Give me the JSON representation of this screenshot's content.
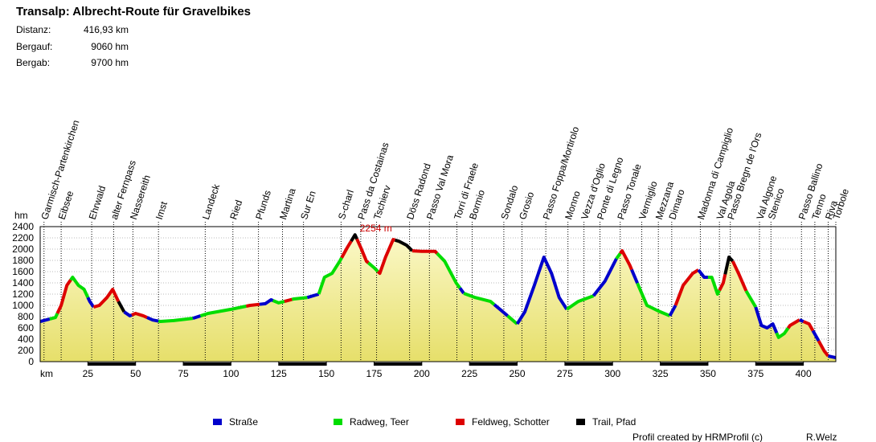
{
  "title": "Transalp: Albrecht-Route für Gravelbikes",
  "stats": [
    {
      "label": "Distanz:",
      "value": "416,93 km"
    },
    {
      "label": "Bergauf:",
      "value": "9060 hm"
    },
    {
      "label": "Bergab:",
      "value": "9700 hm"
    }
  ],
  "chart_data": {
    "type": "area",
    "xlabel": "km",
    "ylabel": "hm",
    "xlim": [
      0,
      417
    ],
    "ylim": [
      0,
      2400
    ],
    "xticks": [
      25,
      50,
      75,
      100,
      125,
      150,
      175,
      200,
      225,
      250,
      275,
      300,
      325,
      350,
      375,
      400
    ],
    "yticks": [
      0,
      200,
      400,
      600,
      800,
      1000,
      1200,
      1400,
      1600,
      1800,
      2000,
      2200,
      2400
    ],
    "x": [
      0,
      8,
      11,
      14,
      17,
      20,
      23,
      26,
      28,
      31,
      35,
      38,
      41,
      44,
      47,
      50,
      54,
      59,
      63,
      70,
      80,
      88,
      100,
      110,
      118,
      121,
      125,
      133,
      140,
      146,
      149,
      153,
      157,
      161,
      165,
      168,
      171,
      175,
      178,
      181,
      185,
      188,
      192,
      195,
      200,
      207,
      212,
      218,
      222,
      228,
      236,
      241,
      246,
      250,
      254,
      259,
      264,
      268,
      272,
      276,
      282,
      290,
      296,
      302,
      305,
      309,
      314,
      318,
      324,
      330,
      333,
      337,
      342,
      345,
      348,
      352,
      355,
      358,
      361,
      363,
      366,
      370,
      375,
      378,
      381,
      384,
      387,
      390,
      393,
      398,
      403,
      407,
      411,
      413,
      416.93
    ],
    "values": [
      714,
      785,
      1000,
      1357,
      1500,
      1357,
      1285,
      1070,
      970,
      1000,
      1140,
      1285,
      1070,
      885,
      815,
      857,
      815,
      740,
      714,
      730,
      770,
      857,
      930,
      1000,
      1030,
      1100,
      1045,
      1115,
      1140,
      1200,
      1500,
      1570,
      1785,
      2030,
      2254,
      2030,
      1785,
      1670,
      1570,
      1857,
      2170,
      2140,
      2070,
      1970,
      1960,
      1960,
      1785,
      1400,
      1215,
      1140,
      1070,
      930,
      785,
      670,
      885,
      1357,
      1857,
      1570,
      1140,
      930,
      1070,
      1170,
      1430,
      1830,
      1970,
      1715,
      1315,
      1000,
      900,
      815,
      1000,
      1357,
      1570,
      1630,
      1500,
      1500,
      1200,
      1400,
      1857,
      1785,
      1570,
      1257,
      970,
      643,
      600,
      670,
      430,
      500,
      643,
      743,
      670,
      430,
      185,
      100,
      70
    ],
    "annotation": {
      "text": "2254 m",
      "x": 165,
      "y": 2254,
      "color": "#cc0000"
    },
    "series": [
      {
        "name": "Straße",
        "color": "#0000cc"
      },
      {
        "name": "Radweg, Teer",
        "color": "#00dd00"
      },
      {
        "name": "Feldweg, Schotter",
        "color": "#dd0000"
      },
      {
        "name": "Trail, Pfad",
        "color": "#000000"
      }
    ],
    "segments": [
      {
        "from": 0,
        "to": 5,
        "surface": 0
      },
      {
        "from": 5,
        "to": 9,
        "surface": 1
      },
      {
        "from": 9,
        "to": 16,
        "surface": 2
      },
      {
        "from": 16,
        "to": 25,
        "surface": 1
      },
      {
        "from": 25,
        "to": 28,
        "surface": 0
      },
      {
        "from": 28,
        "to": 41,
        "surface": 2
      },
      {
        "from": 41,
        "to": 44,
        "surface": 3
      },
      {
        "from": 44,
        "to": 48,
        "surface": 0
      },
      {
        "from": 48,
        "to": 56,
        "surface": 2
      },
      {
        "from": 56,
        "to": 62,
        "surface": 0
      },
      {
        "from": 62,
        "to": 80,
        "surface": 1
      },
      {
        "from": 80,
        "to": 84,
        "surface": 0
      },
      {
        "from": 84,
        "to": 108,
        "surface": 1
      },
      {
        "from": 108,
        "to": 115,
        "surface": 2
      },
      {
        "from": 115,
        "to": 122,
        "surface": 0
      },
      {
        "from": 122,
        "to": 128,
        "surface": 1
      },
      {
        "from": 128,
        "to": 132,
        "surface": 2
      },
      {
        "from": 132,
        "to": 140,
        "surface": 1
      },
      {
        "from": 140,
        "to": 146,
        "surface": 0
      },
      {
        "from": 146,
        "to": 158,
        "surface": 1
      },
      {
        "from": 158,
        "to": 163,
        "surface": 2
      },
      {
        "from": 163,
        "to": 166,
        "surface": 3
      },
      {
        "from": 166,
        "to": 172,
        "surface": 2
      },
      {
        "from": 172,
        "to": 177,
        "surface": 1
      },
      {
        "from": 177,
        "to": 186,
        "surface": 2
      },
      {
        "from": 186,
        "to": 195,
        "surface": 3
      },
      {
        "from": 195,
        "to": 208,
        "surface": 2
      },
      {
        "from": 208,
        "to": 220,
        "surface": 1
      },
      {
        "from": 220,
        "to": 222,
        "surface": 0
      },
      {
        "from": 222,
        "to": 238,
        "surface": 1
      },
      {
        "from": 238,
        "to": 245,
        "surface": 0
      },
      {
        "from": 245,
        "to": 250,
        "surface": 1
      },
      {
        "from": 250,
        "to": 276,
        "surface": 0
      },
      {
        "from": 276,
        "to": 290,
        "surface": 1
      },
      {
        "from": 290,
        "to": 302,
        "surface": 0
      },
      {
        "from": 302,
        "to": 304,
        "surface": 1
      },
      {
        "from": 304,
        "to": 310,
        "surface": 2
      },
      {
        "from": 310,
        "to": 313,
        "surface": 0
      },
      {
        "from": 313,
        "to": 330,
        "surface": 1
      },
      {
        "from": 330,
        "to": 333,
        "surface": 0
      },
      {
        "from": 333,
        "to": 345,
        "surface": 2
      },
      {
        "from": 345,
        "to": 350,
        "surface": 0
      },
      {
        "from": 350,
        "to": 356,
        "surface": 1
      },
      {
        "from": 356,
        "to": 359,
        "surface": 2
      },
      {
        "from": 359,
        "to": 363,
        "surface": 3
      },
      {
        "from": 363,
        "to": 370,
        "surface": 2
      },
      {
        "from": 370,
        "to": 375,
        "surface": 1
      },
      {
        "from": 375,
        "to": 386,
        "surface": 0
      },
      {
        "from": 386,
        "to": 392,
        "surface": 1
      },
      {
        "from": 392,
        "to": 398,
        "surface": 2
      },
      {
        "from": 398,
        "to": 400,
        "surface": 0
      },
      {
        "from": 400,
        "to": 405,
        "surface": 2
      },
      {
        "from": 405,
        "to": 408,
        "surface": 0
      },
      {
        "from": 408,
        "to": 413,
        "surface": 2
      },
      {
        "from": 413,
        "to": 416.93,
        "surface": 0
      }
    ],
    "waypoints": [
      {
        "name": "Garmisch-Partenkirchen",
        "km": 2
      },
      {
        "name": "Eibsee",
        "km": 11
      },
      {
        "name": "Ehrwald",
        "km": 27
      },
      {
        "name": "alter Fernpass",
        "km": 38.5
      },
      {
        "name": "Nassereith",
        "km": 48.6
      },
      {
        "name": "Imst",
        "km": 62
      },
      {
        "name": "Landeck",
        "km": 86.5
      },
      {
        "name": "Ried",
        "km": 101
      },
      {
        "name": "Pfunds",
        "km": 114.4
      },
      {
        "name": "Martina",
        "km": 127
      },
      {
        "name": "Sur En",
        "km": 138
      },
      {
        "name": "S-charl",
        "km": 157.7
      },
      {
        "name": "Pass da Costainas",
        "km": 168
      },
      {
        "name": "Tschierv",
        "km": 176.3
      },
      {
        "name": "Döss Radond",
        "km": 193.6
      },
      {
        "name": "Passo Val Mora",
        "km": 204
      },
      {
        "name": "Torri di Fraele",
        "km": 218.4
      },
      {
        "name": "Bormio",
        "km": 226.4
      },
      {
        "name": "Sondalo",
        "km": 243
      },
      {
        "name": "Grosio",
        "km": 252.5
      },
      {
        "name": "Passo Foppa/Mortirolo",
        "km": 265
      },
      {
        "name": "Monno",
        "km": 276.6
      },
      {
        "name": "Vezza d'Oglio",
        "km": 285
      },
      {
        "name": "Ponte di Legno",
        "km": 293.4
      },
      {
        "name": "Passo Tonale",
        "km": 304
      },
      {
        "name": "Vermiglio",
        "km": 315.3
      },
      {
        "name": "Mezzana",
        "km": 324
      },
      {
        "name": "Dimaro",
        "km": 331
      },
      {
        "name": "Madonna di Campiglio",
        "km": 346
      },
      {
        "name": "Val Agola",
        "km": 356
      },
      {
        "name": "Passo Bregn de l'Ors",
        "km": 361.7
      },
      {
        "name": "Val Algone",
        "km": 377
      },
      {
        "name": "Stenico",
        "km": 383
      },
      {
        "name": "Passo Ballino",
        "km": 399
      },
      {
        "name": "Tenno",
        "km": 406
      },
      {
        "name": "Riva",
        "km": 413
      },
      {
        "name": "Torbole",
        "km": 417
      }
    ]
  },
  "footer": {
    "credit": "Profil created by HRMProfil (c)",
    "author": "R.Welz"
  }
}
